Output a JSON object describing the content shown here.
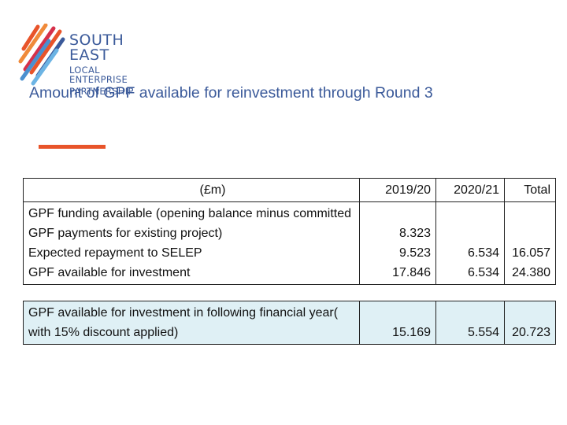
{
  "logo": {
    "line1": "SOUTH EAST",
    "line2": "LOCAL ENTERPRISE",
    "line3": "PARTNERSHIP",
    "colors": {
      "orange": "#e8542a",
      "red": "#d6304a",
      "blue": "#4a90d0",
      "navy": "#3b5a9a"
    }
  },
  "slide": {
    "title": "Amount of GPF available for reinvestment through Round 3",
    "accent_color": "#e8542a"
  },
  "table": {
    "header": {
      "label": "(£m)",
      "col1": "2019/20",
      "col2": "2020/21",
      "col3": "Total"
    },
    "block1": {
      "labels": [
        "GPF funding available (opening balance minus committed GPF payments for existing project)",
        "Expected repayment to SELEP",
        "GPF available for investment"
      ],
      "col1": [
        "8.323",
        "9.523",
        "17.846"
      ],
      "col2": [
        "",
        "6.534",
        "6.534"
      ],
      "col3": [
        "",
        "16.057",
        "24.380"
      ]
    },
    "block2": {
      "label": "GPF available for investment in following financial year( with 15% discount applied)",
      "col1": "15.169",
      "col2": "5.554",
      "col3": "20.723"
    },
    "shade_color": "#dff0f5"
  }
}
